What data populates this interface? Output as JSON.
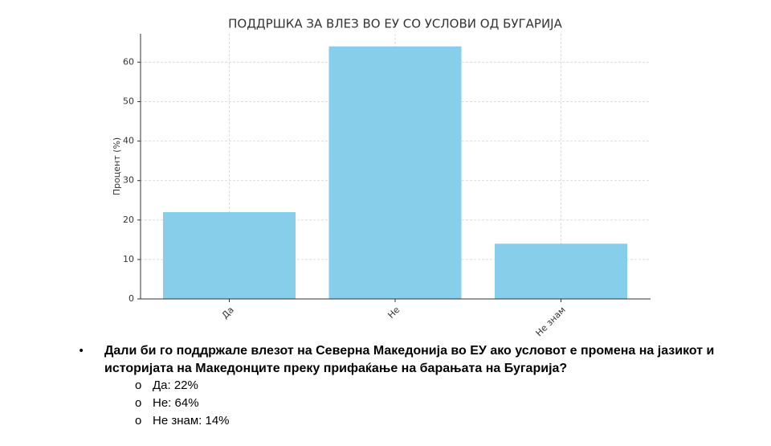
{
  "chart_data": {
    "type": "bar",
    "title": "ПОДДРШКА ЗА ВЛЕЗ ВО ЕУ СО УСЛОВИ ОД БУГАРИЈА",
    "y_label": "Процент (%)",
    "categories": [
      "Да",
      "Не",
      "Не знам"
    ],
    "values": [
      22,
      64,
      14
    ],
    "color": "#87ceeb",
    "ylim": [
      0,
      67.2
    ],
    "yticks": [
      0,
      10,
      20,
      30,
      40,
      50,
      60
    ],
    "grid": true
  },
  "question": "Дали би го поддржале влезот на Северна Македонија во ЕУ ако условот е промена на јазикот и историјата на Македонците преку прифаќање на барањата на Бугарија?",
  "answers": [
    "Да: 22%",
    "Не: 64%",
    "Не знам: 14%"
  ]
}
